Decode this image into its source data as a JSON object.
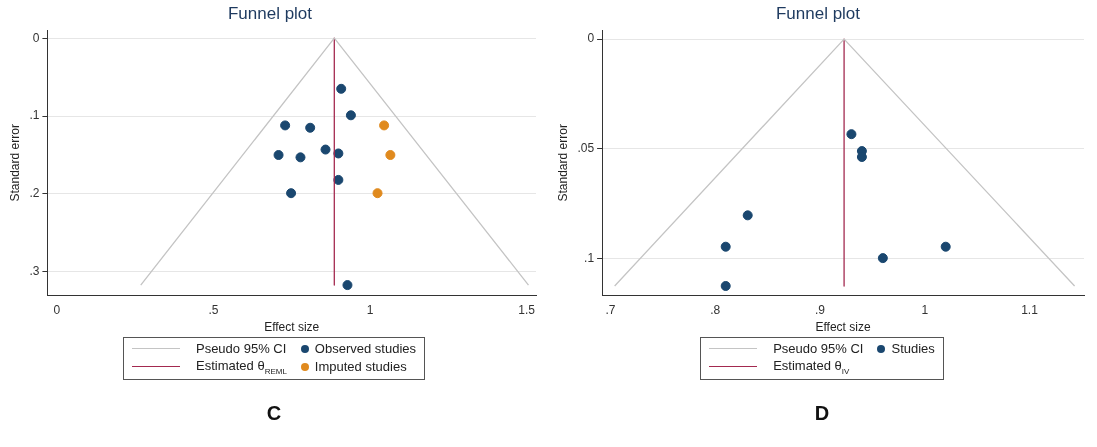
{
  "chart_data": [
    {
      "type": "scatter",
      "title": "Funnel plot",
      "xlabel": "Effect size",
      "ylabel": "Standard error",
      "xlim": [
        -0.03,
        1.53
      ],
      "xticks": [
        0,
        {
          "value": 0.5,
          "label": ".5"
        },
        1,
        1.5
      ],
      "ylim": [
        0.33,
        -0.01
      ],
      "yticks": [
        0,
        {
          "value": 0.1,
          "label": ".1"
        },
        {
          "value": 0.2,
          "label": ".2"
        },
        {
          "value": 0.3,
          "label": ".3"
        }
      ],
      "grid": "y",
      "legend": "bottom",
      "series": [
        {
          "name": "Pseudo 95% CI",
          "type": "line",
          "marker": "none",
          "color": "#c4c4c4",
          "x": [
            0.268,
            0.886,
            1.506
          ],
          "values": [
            0.317,
            0,
            0.317
          ]
        },
        {
          "name": "Estimated θ$_{REML}$",
          "type": "line",
          "marker": "none",
          "color": "#a3294f",
          "x": [
            0.886,
            0.886
          ],
          "values": [
            0,
            0.317
          ]
        },
        {
          "name": "Observed studies",
          "marker": "circle",
          "color": "#1a476f",
          "x": [
            0.908,
            0.939,
            0.729,
            0.809,
            0.858,
            0.899,
            0.708,
            0.778,
            0.899,
            0.748,
            0.928
          ],
          "values": [
            0.065,
            0.099,
            0.112,
            0.115,
            0.143,
            0.148,
            0.15,
            0.153,
            0.182,
            0.199,
            0.317
          ]
        },
        {
          "name": "Imputed studies",
          "marker": "circle",
          "color": "#e08a1e",
          "x": [
            1.045,
            1.065,
            1.024
          ],
          "values": [
            0.112,
            0.15,
            0.199
          ]
        }
      ],
      "annotations": [
        "C"
      ]
    },
    {
      "type": "scatter",
      "title": "Funnel plot",
      "xlabel": "Effect size",
      "ylabel": "Standard error",
      "xlim": [
        0.692,
        1.152
      ],
      "xticks": [
        {
          "value": 0.7,
          "label": ".7"
        },
        {
          "value": 0.8,
          "label": ".8"
        },
        {
          "value": 0.9,
          "label": ".9"
        },
        1,
        1.1
      ],
      "ylim": [
        0.1167,
        -0.004
      ],
      "yticks": [
        0,
        {
          "value": 0.05,
          "label": ".05"
        },
        {
          "value": 0.1,
          "label": ".1"
        }
      ],
      "grid": "y",
      "legend": "bottom",
      "series": [
        {
          "name": "Pseudo 95% CI",
          "type": "line",
          "marker": "none",
          "color": "#c4c4c4",
          "x": [
            0.704,
            0.923,
            1.143
          ],
          "values": [
            0.1125,
            0,
            0.1125
          ]
        },
        {
          "name": "Estimated θ$_{IV}$",
          "type": "line",
          "marker": "none",
          "color": "#a3294f",
          "x": [
            0.923,
            0.923
          ],
          "values": [
            0,
            0.1125
          ]
        },
        {
          "name": "Studies",
          "marker": "circle",
          "color": "#1a476f",
          "x": [
            0.93,
            0.94,
            0.94,
            0.831,
            0.81,
            1.02,
            0.96,
            0.81
          ],
          "values": [
            0.0433,
            0.051,
            0.0537,
            0.0803,
            0.0946,
            0.0946,
            0.0998,
            0.1125
          ]
        }
      ],
      "annotations": [
        "D"
      ]
    }
  ]
}
